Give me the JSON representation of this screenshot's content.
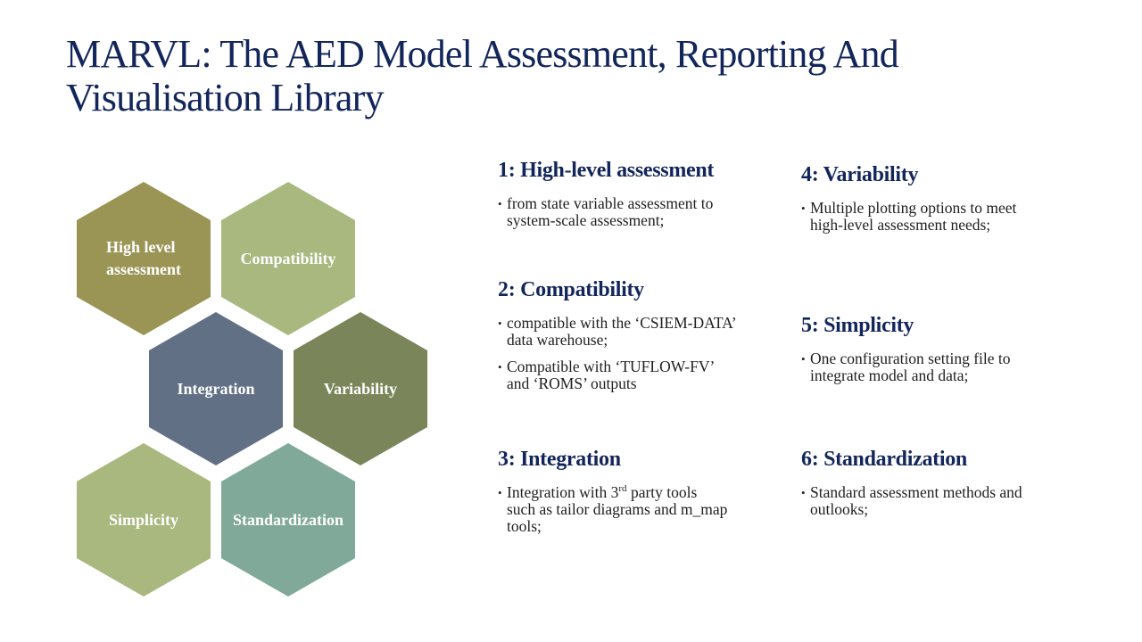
{
  "title": {
    "line1": "MARVL: The AED Model Assessment, Reporting And",
    "line2": "Visualisation Library"
  },
  "hexagons": [
    {
      "line1": "High level",
      "line2": "assessment",
      "color": "#9a9455"
    },
    {
      "label": "Compatibility",
      "color": "#a8b87e"
    },
    {
      "label": "Integration",
      "color": "#627086"
    },
    {
      "label": "Variability",
      "color": "#7a855a"
    },
    {
      "label": "Simplicity",
      "color": "#a8b87e"
    },
    {
      "label": "Standardization",
      "color": "#81a99a"
    }
  ],
  "sections": {
    "s1": {
      "heading": "1: High-level assessment",
      "bullets": [
        "from state variable assessment to system-scale  assessment;"
      ]
    },
    "s2": {
      "heading": "2: Compatibility",
      "bullets": [
        "compatible with the ‘CSIEM-DATA’ data warehouse;",
        "Compatible with ‘TUFLOW-FV’ and ‘ROMS’ outputs"
      ]
    },
    "s3": {
      "heading": "3: Integration",
      "bullet_pre": "Integration with 3",
      "bullet_sup": "rd",
      "bullet_post": " party tools",
      "bullet_rest": "such as tailor diagrams  and m_map tools;"
    },
    "s4": {
      "heading": "4: Variability",
      "bullets": [
        "Multiple plotting options to meet high-level assessment needs;"
      ]
    },
    "s5": {
      "heading": "5: Simplicity",
      "bullets": [
        "One configuration setting file to integrate model and data;"
      ]
    },
    "s6": {
      "heading": "6: Standardization",
      "bullets": [
        "Standard assessment methods and outlooks;"
      ]
    }
  }
}
